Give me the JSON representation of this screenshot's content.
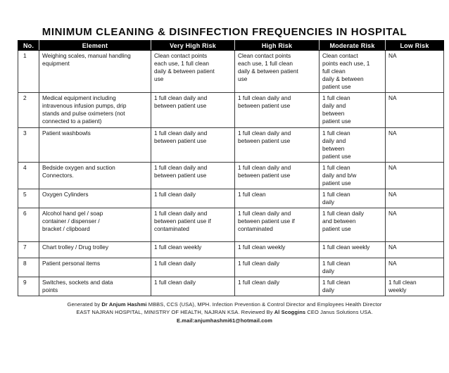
{
  "title": "MINIMUM CLEANING & DISINFECTION FREQUENCIES IN HOSPITAL",
  "colors": {
    "header_bg": "#000000",
    "header_text": "#ffffff",
    "body_text": "#141414",
    "border": "#3c3c3c"
  },
  "table": {
    "headers": [
      "No.",
      "Element",
      "Very High Risk",
      "High Risk",
      "Moderate Risk",
      "Low Risk"
    ],
    "rows": [
      {
        "no": "1",
        "element": "Weighing scales, manual handling\nequipment",
        "very_high": "Clean contact points\neach use, 1 full clean\ndaily & between patient\nuse",
        "high": "Clean contact points\neach use, 1 full clean\ndaily & between patient\nuse",
        "moderate": "Clean contact\npoints each use, 1\nfull clean\ndaily & between\npatient use",
        "low": "NA"
      },
      {
        "no": "2",
        "element": "Medical equipment including\nintravenous infusion pumps, drip\nstands and pulse oximeters (not\nconnected to a patient)",
        "very_high": "1 full clean daily and\nbetween patient use",
        "high": "1 full clean daily and\nbetween patient use",
        "moderate": "1 full clean\ndaily and\nbetween\npatient use",
        "low": "NA"
      },
      {
        "no": "3",
        "element": "Patient washbowls",
        "very_high": "1 full clean daily and\nbetween patient use",
        "high": "1 full clean daily and\nbetween patient use",
        "moderate": "1 full clean\ndaily and\nbetween\npatient use",
        "low": "NA"
      },
      {
        "no": "4",
        "element": "Bedside oxygen and suction\nConnectors.",
        "very_high": "1 full clean daily and\nbetween patient use",
        "high": "1 full clean daily and\nbetween patient use",
        "moderate": "1 full clean\ndaily and b/w\npatient use",
        "low": "NA"
      },
      {
        "no": "5",
        "element": "Oxygen Cylinders",
        "very_high": "1 full clean daily",
        "high": "1 full clean",
        "moderate": "1 full clean\ndaily",
        "low": "NA"
      },
      {
        "no": "6",
        "element": "Alcohol hand gel / soap\ncontainer / dispenser /\nbracket / clipboard",
        "very_high": "1 full clean daily and\nbetween patient use if\ncontaminated",
        "high": "1 full clean daily and\nbetween patient use if\ncontaminated",
        "moderate": "1 full clean daily\nand between\npatient use",
        "low": "NA"
      },
      {
        "no": "7",
        "element": "Chart trolley /  Drug trolley",
        "very_high": "1 full clean weekly",
        "high": "1 full clean weekly",
        "moderate": "1 full clean weekly",
        "low": "NA"
      },
      {
        "no": "8",
        "element": "Patient personal items",
        "very_high": "1 full clean daily",
        "high": "1 full clean daily",
        "moderate": "1 full clean\ndaily",
        "low": "NA"
      },
      {
        "no": "9",
        "element": "Switches, sockets and data\npoints",
        "very_high": "1 full clean daily",
        "high": "1 full clean daily",
        "moderate": "1 full clean\ndaily",
        "low": "1 full clean\nweekly"
      }
    ]
  },
  "footer": {
    "line1": {
      "pre": "Generated by ",
      "bold": "Dr Anjum Hashmi",
      "post": " MBBS, CCS (USA), MPH. Infection Prevention & Control Director and Employees Health Director"
    },
    "line2": {
      "pre": "EAST NAJRAN HOSPITAL, MINISTRY OF HEALTH, NAJRAN KSA. Reviewed By ",
      "bold": "Al Scoggins",
      "post": " CEO Janus Solutions USA."
    },
    "line3": {
      "bold": "E.mail:anjumhashmi61@hotmail.com"
    }
  }
}
